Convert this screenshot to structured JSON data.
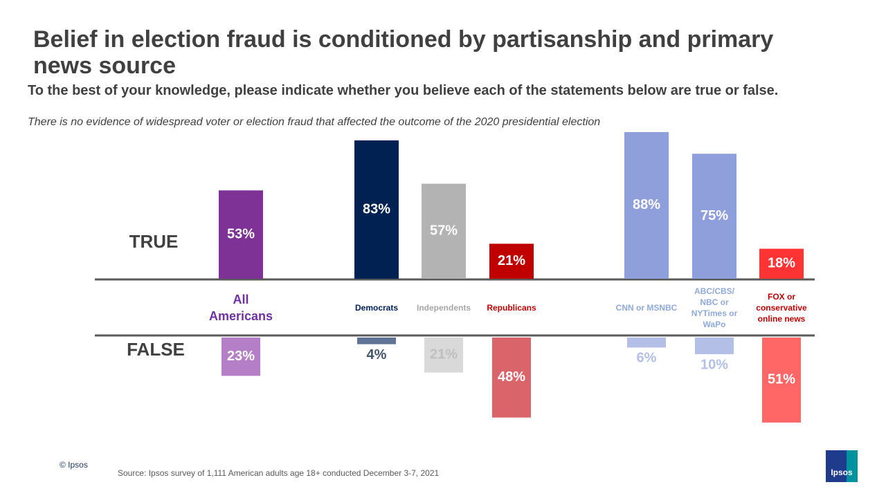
{
  "chart_data": {
    "type": "diverging_bar",
    "title": "Belief in election fraud is conditioned by partisanship and primary news source",
    "subtitle": "To the best of your knowledge, please indicate whether you believe each of the statements below are true or false.",
    "note": "There is no evidence of widespread voter or election fraud that affected the outcome of the 2020 presidential election",
    "categories": [
      "All Americans",
      "Democrats",
      "Independents",
      "Republicans",
      "CNN or MSNBC",
      "ABC/CBS/ NBC or NYTimes or WaPo",
      "FOX or conservative online news"
    ],
    "category_colors": [
      "#7030a0",
      "#002060",
      "#a6a6a6",
      "#c00000",
      "#8ea9db",
      "#8ea9db",
      "#c00000"
    ],
    "series": [
      {
        "name": "TRUE",
        "values": [
          53,
          83,
          57,
          21,
          88,
          75,
          18
        ],
        "value_labels": [
          "53%",
          "83%",
          "57%",
          "21%",
          "88%",
          "75%",
          "18%"
        ],
        "colors": [
          "#7f3296",
          "#002152",
          "#b3b3b3",
          "#c00000",
          "#8f9fdc",
          "#8f9fdc",
          "#ff3333"
        ],
        "label_colors": [
          "#ffffff",
          "#ffffff",
          "#ffffff",
          "#ffffff",
          "#ffffff",
          "#ffffff",
          "#ffffff"
        ]
      },
      {
        "name": "FALSE",
        "values": [
          23,
          4,
          21,
          48,
          6,
          10,
          51
        ],
        "value_labels": [
          "23%",
          "4%",
          "21%",
          "48%",
          "6%",
          "10%",
          "51%"
        ],
        "colors": [
          "#b47fc6",
          "#5f7396",
          "#d9d9d9",
          "#d9646a",
          "#b4bfe8",
          "#b4bfe8",
          "#ff6666"
        ],
        "label_colors": [
          "#ffffff",
          "#44546a",
          "#bfbfbf",
          "#ffffff",
          "#b4bfe8",
          "#b4bfe8",
          "#ffffff"
        ]
      }
    ],
    "copyright": "© Ipsos",
    "source": "Source: Ipsos survey of 1,111 American adults age 18+ conducted December 3-7, 2021",
    "logo": "Ipsos"
  }
}
